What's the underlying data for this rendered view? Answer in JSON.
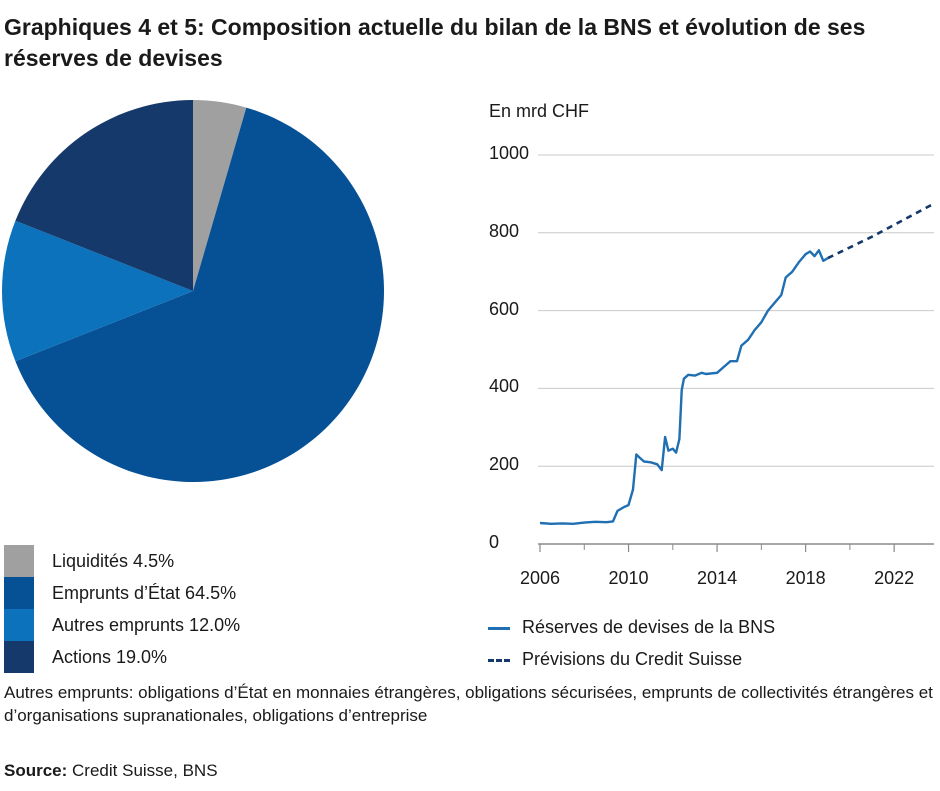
{
  "title": "Graphiques 4 et 5: Composition actuelle du bilan de la BNS et évolution de ses réserves de devises",
  "note": "Autres emprunts: obligations d’État en monnaies étrangères, obligations sécurisées, emprunts de collectivités étrangères et d’organisations supranationales, obligations d’entreprise",
  "source": {
    "label": "Source:",
    "text": "Credit Suisse, BNS"
  },
  "chart_data": [
    {
      "type": "pie",
      "slices": [
        {
          "label": "Liquidités 4.5%",
          "value": 4.5,
          "color": "#a0a0a0"
        },
        {
          "label": "Emprunts d’État 64.5%",
          "value": 64.5,
          "color": "#065195"
        },
        {
          "label": "Autres emprunts 12.0%",
          "value": 12.0,
          "color": "#0b72bb"
        },
        {
          "label": "Actions 19.0%",
          "value": 19.0,
          "color": "#15396a"
        }
      ]
    },
    {
      "type": "line",
      "ylabel": "En mrd CHF",
      "ylim": [
        0,
        1000
      ],
      "yticks": [
        "0",
        "200",
        "400",
        "600",
        "800",
        "1000"
      ],
      "xlim": [
        2006,
        2023.8
      ],
      "xticks": [
        "2006",
        "2010",
        "2014",
        "2018",
        "2022"
      ],
      "grid": true,
      "legend": "bottom",
      "series": [
        {
          "name": "Réserves de devises de la BNS",
          "color": "#1f6fb2",
          "style": "solid",
          "points": [
            [
              2006.0,
              54
            ],
            [
              2006.5,
              52
            ],
            [
              2007.0,
              53
            ],
            [
              2007.5,
              52
            ],
            [
              2008.0,
              55
            ],
            [
              2008.5,
              57
            ],
            [
              2009.0,
              56
            ],
            [
              2009.3,
              58
            ],
            [
              2009.5,
              85
            ],
            [
              2009.8,
              95
            ],
            [
              2010.0,
              100
            ],
            [
              2010.2,
              140
            ],
            [
              2010.35,
              230
            ],
            [
              2010.5,
              222
            ],
            [
              2010.7,
              212
            ],
            [
              2011.0,
              210
            ],
            [
              2011.3,
              205
            ],
            [
              2011.5,
              190
            ],
            [
              2011.65,
              275
            ],
            [
              2011.8,
              240
            ],
            [
              2012.0,
              245
            ],
            [
              2012.15,
              235
            ],
            [
              2012.3,
              270
            ],
            [
              2012.4,
              395
            ],
            [
              2012.5,
              425
            ],
            [
              2012.7,
              435
            ],
            [
              2013.0,
              433
            ],
            [
              2013.3,
              440
            ],
            [
              2013.5,
              437
            ],
            [
              2014.0,
              440
            ],
            [
              2014.3,
              455
            ],
            [
              2014.6,
              470
            ],
            [
              2014.9,
              470
            ],
            [
              2015.1,
              510
            ],
            [
              2015.4,
              525
            ],
            [
              2015.7,
              550
            ],
            [
              2016.0,
              570
            ],
            [
              2016.3,
              600
            ],
            [
              2016.6,
              620
            ],
            [
              2016.9,
              640
            ],
            [
              2017.1,
              685
            ],
            [
              2017.4,
              700
            ],
            [
              2017.7,
              725
            ],
            [
              2018.0,
              745
            ],
            [
              2018.2,
              752
            ],
            [
              2018.4,
              740
            ],
            [
              2018.6,
              755
            ],
            [
              2018.8,
              728
            ],
            [
              2019.0,
              735
            ]
          ]
        },
        {
          "name": "Prévisions du Credit Suisse",
          "color": "#15396a",
          "style": "dashed",
          "points": [
            [
              2019.0,
              735
            ],
            [
              2021.0,
              790
            ],
            [
              2023.8,
              875
            ]
          ]
        }
      ]
    }
  ]
}
